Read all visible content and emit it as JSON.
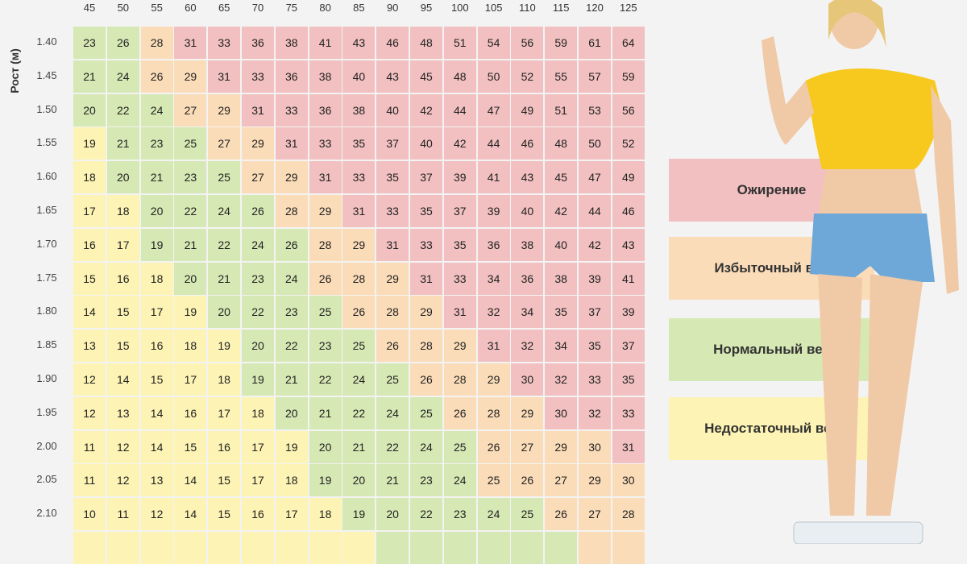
{
  "chart_data": {
    "type": "heatmap",
    "ylabel": "Рост (м)",
    "xlabel": "",
    "columns": [
      "45",
      "50",
      "55",
      "60",
      "65",
      "70",
      "75",
      "80",
      "85",
      "90",
      "95",
      "100",
      "105",
      "110",
      "115",
      "120",
      "125"
    ],
    "rows": [
      "1.40",
      "1.45",
      "1.50",
      "1.55",
      "1.60",
      "1.65",
      "1.70",
      "1.75",
      "1.80",
      "1.85",
      "1.90",
      "1.95",
      "2.00",
      "2.05",
      "2.10"
    ],
    "values": [
      [
        23,
        26,
        28,
        31,
        33,
        36,
        38,
        41,
        43,
        46,
        48,
        51,
        54,
        56,
        59,
        61,
        64
      ],
      [
        21,
        24,
        26,
        29,
        31,
        33,
        36,
        38,
        40,
        43,
        45,
        48,
        50,
        52,
        55,
        57,
        59
      ],
      [
        20,
        22,
        24,
        27,
        29,
        31,
        33,
        36,
        38,
        40,
        42,
        44,
        47,
        49,
        51,
        53,
        56
      ],
      [
        19,
        21,
        23,
        25,
        27,
        29,
        31,
        33,
        35,
        37,
        40,
        42,
        44,
        46,
        48,
        50,
        52
      ],
      [
        18,
        20,
        21,
        23,
        25,
        27,
        29,
        31,
        33,
        35,
        37,
        39,
        41,
        43,
        45,
        47,
        49
      ],
      [
        17,
        18,
        20,
        22,
        24,
        26,
        28,
        29,
        31,
        33,
        35,
        37,
        39,
        40,
        42,
        44,
        46
      ],
      [
        16,
        17,
        19,
        21,
        22,
        24,
        26,
        28,
        29,
        31,
        33,
        35,
        36,
        38,
        40,
        42,
        43
      ],
      [
        15,
        16,
        18,
        20,
        21,
        23,
        24,
        26,
        28,
        29,
        31,
        33,
        34,
        36,
        38,
        39,
        41
      ],
      [
        14,
        15,
        17,
        19,
        20,
        22,
        23,
        25,
        26,
        28,
        29,
        31,
        32,
        34,
        35,
        37,
        39
      ],
      [
        13,
        15,
        16,
        18,
        19,
        20,
        22,
        23,
        25,
        26,
        28,
        29,
        31,
        32,
        34,
        35,
        37
      ],
      [
        12,
        14,
        15,
        17,
        18,
        19,
        21,
        22,
        24,
        25,
        26,
        28,
        29,
        30,
        32,
        33,
        35
      ],
      [
        12,
        13,
        14,
        16,
        17,
        18,
        20,
        21,
        22,
        24,
        25,
        26,
        28,
        29,
        30,
        32,
        33
      ],
      [
        11,
        12,
        14,
        15,
        16,
        17,
        19,
        20,
        21,
        22,
        24,
        25,
        26,
        27,
        29,
        30,
        31
      ],
      [
        11,
        12,
        13,
        14,
        15,
        17,
        18,
        19,
        20,
        21,
        23,
        24,
        25,
        26,
        27,
        29,
        30
      ],
      [
        10,
        11,
        12,
        14,
        15,
        16,
        17,
        18,
        19,
        20,
        22,
        23,
        24,
        25,
        26,
        27,
        28
      ]
    ],
    "categories_grid": [
      "ggorrrrrrrrrrrrrr",
      "ggoorrrrrrrrrrrrr",
      "gggoorrrrrrrrrrrr",
      "ygggoorrrrrrrrrrr",
      "yggggoorrrrrrrrrr",
      "yyggggoorrrrrrrrr",
      "yygggggoorrrrrrrr",
      "yyyggggooorrrrrrr",
      "yyyyggggooorrrrrr",
      "yyyyyggggooorrrrr",
      "yyyyygggggooorrrr",
      "yyyyyygggggooorrr",
      "yyyyyyygggggoooor",
      "yyyyyyygggggooooo",
      "yyyyyyyyggggggooo"
    ],
    "legend": [
      {
        "key": "r",
        "label": "Ожирение",
        "color": "#f2c0c0"
      },
      {
        "key": "o",
        "label": "Избыточный вес",
        "color": "#fbdcb8"
      },
      {
        "key": "g",
        "label": "Нормальный вес",
        "color": "#d6e8b4"
      },
      {
        "key": "y",
        "label": "Недостаточный вес",
        "color": "#fcf3b4"
      }
    ]
  }
}
